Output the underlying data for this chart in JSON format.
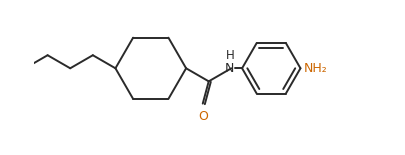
{
  "bg_color": "#ffffff",
  "line_color": "#2a2a2a",
  "line_width": 1.4,
  "NH_color": "#2a2a2a",
  "O_color": "#cc6600",
  "NH2_color": "#cc6600",
  "figsize": [
    4.06,
    1.55
  ],
  "dpi": 100,
  "xlim": [
    -3.8,
    7.2
  ],
  "ylim": [
    -2.8,
    2.2
  ]
}
